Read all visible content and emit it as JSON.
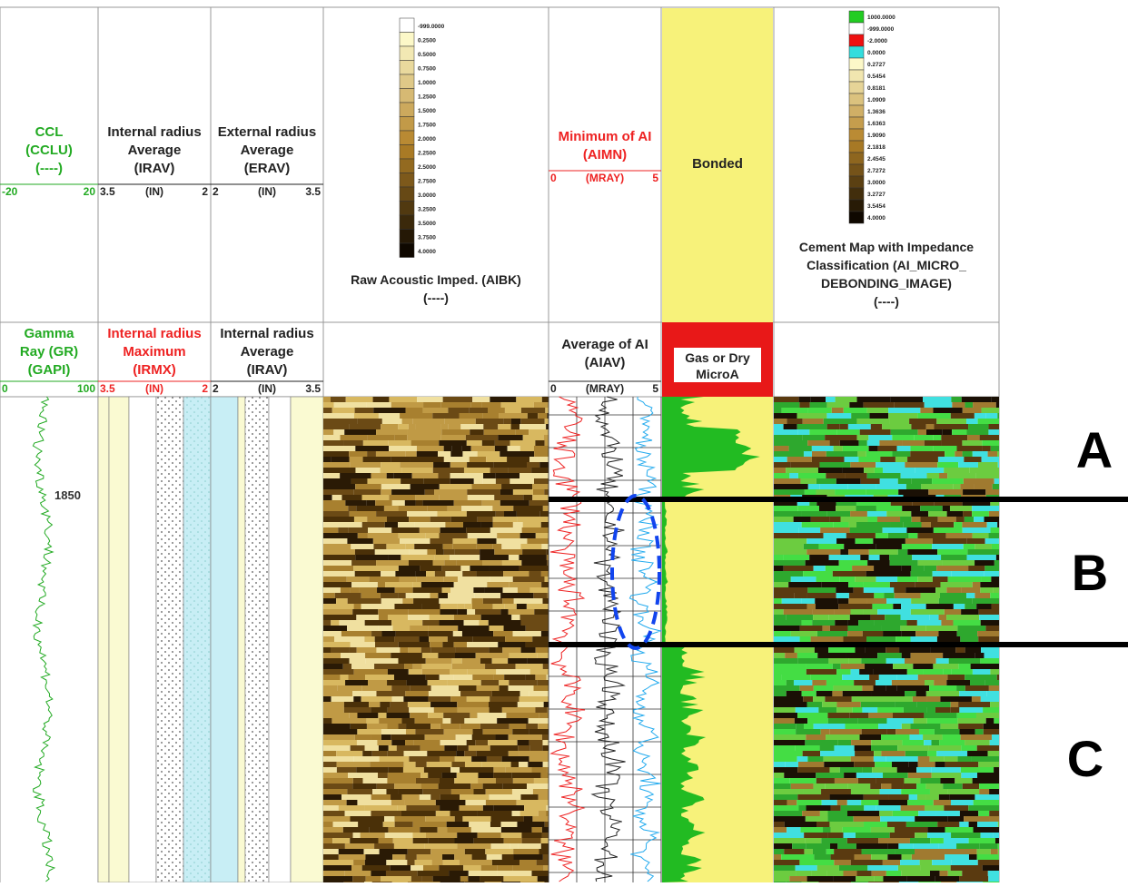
{
  "depth_label": "1850",
  "tracks": [
    {
      "top": {
        "lines": [
          "CCL",
          "(CCLU)",
          "(----)"
        ],
        "color": "#22aa22",
        "scale": {
          "left": "-20",
          "right": "20"
        }
      },
      "bottom": {
        "lines": [
          "Gamma",
          "Ray (GR)",
          "(GAPI)"
        ],
        "color": "#22aa22",
        "scale": {
          "left": "0",
          "right": "100"
        }
      }
    },
    {
      "top": {
        "lines": [
          "Internal radius",
          "Average",
          "(IRAV)"
        ],
        "color": "#222222",
        "scale": {
          "left": "3.5",
          "unit": "(IN)",
          "right": "2"
        }
      },
      "bottom": {
        "lines": [
          "Internal radius",
          "Maximum",
          "(IRMX)"
        ],
        "color": "#ee2222",
        "scale": {
          "left": "3.5",
          "unit": "(IN)",
          "right": "2"
        }
      }
    },
    {
      "top": {
        "lines": [
          "External radius",
          "Average",
          "(ERAV)"
        ],
        "color": "#222222",
        "scale": {
          "left": "2",
          "unit": "(IN)",
          "right": "3.5"
        }
      },
      "bottom": {
        "lines": [
          "Internal radius",
          "Average",
          "(IRAV)"
        ],
        "color": "#222222",
        "scale": {
          "left": "2",
          "unit": "(IN)",
          "right": "3.5"
        }
      }
    },
    {
      "title": [
        "Raw Acoustic Imped. (AIBK)",
        "(----)"
      ],
      "legend": [
        "-999.0000",
        "0.2500",
        "0.5000",
        "0.7500",
        "1.0000",
        "1.2500",
        "1.5000",
        "1.7500",
        "2.0000",
        "2.2500",
        "2.5000",
        "2.7500",
        "3.0000",
        "3.2500",
        "3.5000",
        "3.7500",
        "4.0000"
      ]
    },
    {
      "top": {
        "lines": [
          "Minimum of AI",
          "(AIMN)"
        ],
        "color": "#ee2222",
        "scale": {
          "left": "0",
          "unit": "(MRAY)",
          "right": "5"
        }
      },
      "bottom": {
        "lines": [
          "Average of AI",
          "(AIAV)"
        ],
        "color": "#222222",
        "scale": {
          "left": "0",
          "unit": "(MRAY)",
          "right": "5"
        }
      }
    },
    {
      "top_box": [
        "Bonded"
      ],
      "bottom_box": [
        "Gas or Dry",
        "MicroA"
      ]
    },
    {
      "title": [
        "Cement Map with Impedance",
        "Classification (AI_MICRO_",
        "DEBONDING_IMAGE)",
        "(----)"
      ],
      "legend": [
        "1000.0000",
        "-999.0000",
        "-2.0000",
        "0.0000",
        "0.2727",
        "0.5454",
        "0.8181",
        "1.0909",
        "1.3636",
        "1.6363",
        "1.9090",
        "2.1818",
        "2.4545",
        "2.7272",
        "3.0000",
        "3.2727",
        "3.5454",
        "4.0000"
      ]
    }
  ],
  "zones": [
    "A",
    "B",
    "C"
  ]
}
